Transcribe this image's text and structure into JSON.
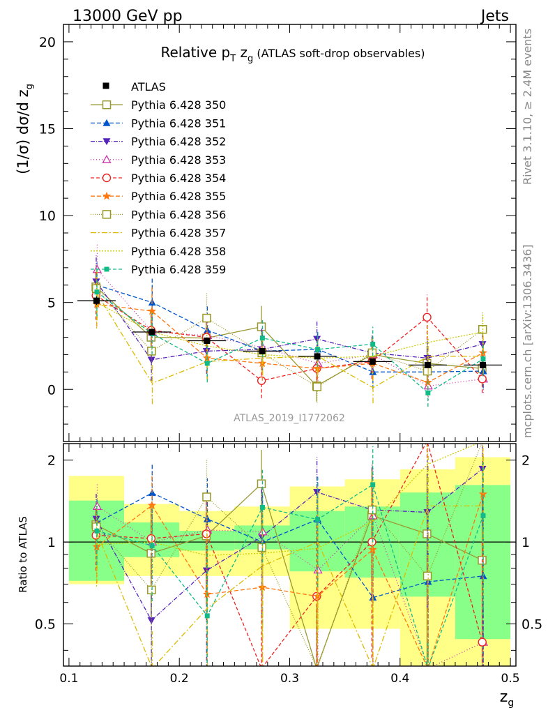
{
  "header": {
    "left_label": "13000 GeV pp",
    "right_label": "Jets"
  },
  "side_text": {
    "rivet": "Rivet 3.1.10, ≥ 2.4M events",
    "mcplots": "mcplots.cern.ch [arXiv:1306.3436]"
  },
  "colors": {
    "yellow_band": "#ffff88",
    "green_band": "#88ff88",
    "axis": "#000000"
  },
  "chart_data": {
    "type": "scatter",
    "title": "Relative p_T z_g (ATLAS soft-drop observables)",
    "title_main": "Relative p",
    "title_sub_T": "T",
    "title_z": " z",
    "title_sub_g": "g",
    "title_paren": " (ATLAS soft-drop observables)",
    "analysis_label": "ATLAS_2019_I1772062",
    "xlabel": "z",
    "xlabel_sub": "g",
    "ylabel": "(1/σ) dσ/d z",
    "ylabel_sub": "g",
    "ratio_ylabel": "Ratio to ATLAS",
    "xlim": [
      0.095,
      0.505
    ],
    "ylim": [
      -3.0,
      21.0
    ],
    "ratio_ylim": [
      0.35,
      2.3
    ],
    "x_ticks": [
      0.1,
      0.2,
      0.3,
      0.4,
      0.5
    ],
    "x_tick_labels": [
      "0.1",
      "0.2",
      "0.3",
      "0.4",
      "0.5"
    ],
    "y_ticks": [
      0,
      5,
      10,
      15,
      20
    ],
    "y_tick_labels": [
      "0",
      "5",
      "10",
      "15",
      "20"
    ],
    "ratio_ticks": [
      0.5,
      1,
      2
    ],
    "ratio_tick_labels": [
      "0.5",
      "1",
      "2"
    ],
    "bin_edges": [
      0.1,
      0.15,
      0.2,
      0.25,
      0.3,
      0.35,
      0.4,
      0.45,
      0.5
    ],
    "x": [
      0.125,
      0.175,
      0.225,
      0.275,
      0.325,
      0.375,
      0.425,
      0.475
    ],
    "atlas": {
      "name": "ATLAS",
      "values": [
        5.1,
        3.3,
        2.8,
        2.2,
        1.9,
        1.6,
        1.4,
        1.4
      ],
      "errors": [
        0.25,
        0.15,
        0.15,
        0.1,
        0.1,
        0.1,
        0.1,
        0.1
      ]
    },
    "ratio_band_yellow": [
      [
        0.7,
        1.75
      ],
      [
        0.75,
        1.38
      ],
      [
        0.75,
        1.3
      ],
      [
        0.75,
        1.35
      ],
      [
        0.48,
        1.6
      ],
      [
        0.48,
        1.7
      ],
      [
        0.35,
        1.85
      ],
      [
        0.35,
        2.05
      ]
    ],
    "ratio_band_green": [
      [
        0.72,
        1.42
      ],
      [
        0.88,
        1.18
      ],
      [
        0.93,
        1.1
      ],
      [
        0.94,
        1.15
      ],
      [
        0.78,
        1.3
      ],
      [
        0.74,
        1.35
      ],
      [
        0.63,
        1.52
      ],
      [
        0.44,
        1.62
      ]
    ],
    "legend_position": "top-left",
    "series": [
      {
        "name": "Pythia 6.428 350",
        "color": "#999933",
        "marker": "square-open",
        "dash": "",
        "values": [
          5.9,
          3.0,
          2.95,
          3.6,
          0.2,
          2.0,
          1.5,
          1.2
        ],
        "errors": [
          1.0,
          1.3,
          1.3,
          1.2,
          0.9,
          1.0,
          1.0,
          1.0
        ]
      },
      {
        "name": "Pythia 6.428 351",
        "color": "#0055cc",
        "marker": "triangle-up",
        "dash": "6,3",
        "values": [
          6.0,
          5.0,
          3.4,
          2.2,
          2.3,
          1.0,
          1.0,
          1.05
        ],
        "errors": [
          1.3,
          1.4,
          1.4,
          1.1,
          1.0,
          1.0,
          1.0,
          1.0
        ]
      },
      {
        "name": "Pythia 6.428 352",
        "color": "#5522bb",
        "marker": "triangle-down",
        "dash": "6,2,1,2",
        "values": [
          6.2,
          1.7,
          2.2,
          2.3,
          2.9,
          2.1,
          1.8,
          2.6
        ],
        "errors": [
          1.5,
          1.2,
          1.3,
          1.2,
          1.0,
          1.0,
          1.0,
          1.0
        ]
      },
      {
        "name": "Pythia 6.428 353",
        "color": "#cc33aa",
        "marker": "triangle-open",
        "dash": "1,3",
        "values": [
          6.9,
          3.3,
          3.1,
          2.4,
          1.5,
          2.0,
          0.2,
          0.6
        ],
        "errors": [
          1.5,
          1.3,
          1.2,
          1.1,
          1.0,
          1.0,
          0.8,
          0.8
        ]
      },
      {
        "name": "Pythia 6.428 354",
        "color": "#ee2222",
        "marker": "circle-open",
        "dash": "5,3",
        "values": [
          5.4,
          3.4,
          3.0,
          0.5,
          1.2,
          1.6,
          4.15,
          0.6
        ],
        "errors": [
          1.4,
          1.2,
          1.2,
          1.0,
          1.0,
          1.0,
          1.3,
          0.8
        ]
      },
      {
        "name": "Pythia 6.428 355",
        "color": "#ff7711",
        "marker": "star",
        "dash": "6,3",
        "values": [
          4.9,
          4.5,
          1.8,
          1.5,
          1.2,
          1.5,
          0.4,
          2.1
        ],
        "errors": [
          1.3,
          1.4,
          1.2,
          1.0,
          1.0,
          1.0,
          0.8,
          1.0
        ]
      },
      {
        "name": "Pythia 6.428 356",
        "color": "#999922",
        "marker": "square-open",
        "dash": "1,2",
        "values": [
          5.8,
          2.2,
          4.1,
          2.1,
          0.15,
          2.1,
          1.05,
          3.45
        ],
        "errors": [
          1.4,
          1.2,
          1.5,
          1.1,
          0.9,
          1.0,
          0.9,
          1.0
        ]
      },
      {
        "name": "Pythia 6.428 357",
        "color": "#ddbb00",
        "marker": "none",
        "dash": "8,3,2,3",
        "values": [
          5.5,
          0.35,
          1.6,
          1.8,
          1.9,
          0.1,
          1.9,
          1.9
        ],
        "errors": [
          1.5,
          1.2,
          1.1,
          1.0,
          1.0,
          0.9,
          1.0,
          1.0
        ]
      },
      {
        "name": "Pythia 6.428 358",
        "color": "#cccc00",
        "marker": "none",
        "dash": "2,2",
        "values": [
          5.0,
          3.3,
          2.5,
          2.0,
          1.8,
          1.9,
          2.7,
          3.3
        ],
        "errors": [
          1.5,
          1.2,
          1.2,
          1.0,
          1.0,
          1.0,
          1.0,
          1.0
        ]
      },
      {
        "name": "Pythia 6.428 359",
        "color": "#11bb88",
        "marker": "square-filled",
        "dash": "5,3",
        "values": [
          5.6,
          3.2,
          1.5,
          2.95,
          2.3,
          2.6,
          -0.2,
          1.75
        ],
        "errors": [
          1.4,
          1.2,
          1.1,
          1.1,
          1.0,
          1.0,
          0.8,
          1.0
        ]
      }
    ]
  }
}
